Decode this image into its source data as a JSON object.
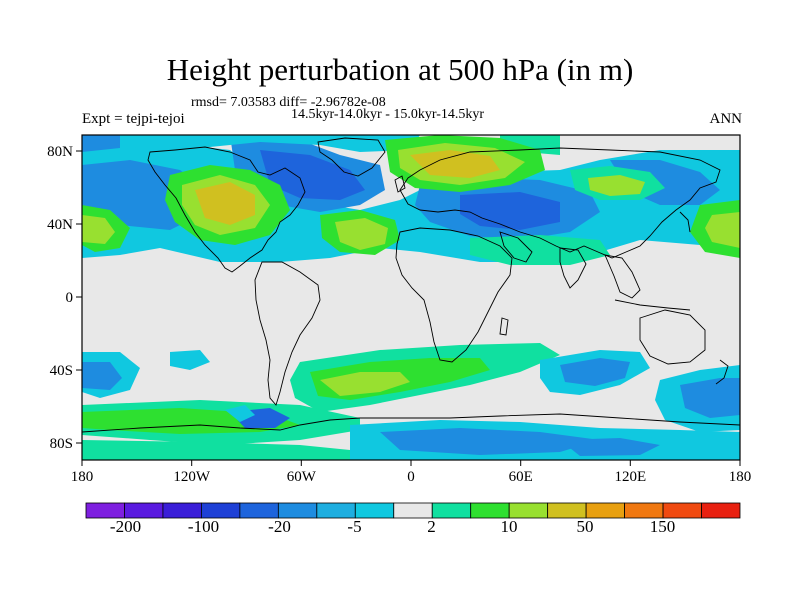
{
  "title": "Height perturbation at 500 hPa (in m)",
  "stats": "rmsd= 7.03583 diff= -2.96782e-08",
  "periods": "14.5kyr-14.0kyr - 15.0kyr-14.5kyr",
  "experiment": "Expt = tejpi-tejoi",
  "season": "ANN",
  "axes": {
    "lon_ticks": [
      "180",
      "120W",
      "60W",
      "0",
      "60E",
      "120E",
      "180"
    ],
    "lat_ticks": [
      "80N",
      "40N",
      "0",
      "40S",
      "80S"
    ]
  },
  "colorbar": {
    "labels": [
      "-200",
      "-100",
      "-20",
      "-5",
      "2",
      "10",
      "50",
      "150"
    ],
    "colors": [
      "#7e1fe0",
      "#5a1ae0",
      "#3a1ed8",
      "#1e40d6",
      "#1e64dc",
      "#1e8ce0",
      "#1eaee0",
      "#10c8e0",
      "#e8e8e8",
      "#10e0a0",
      "#2ee030",
      "#98e030",
      "#d0c020",
      "#e8a010",
      "#f07810",
      "#f04a10",
      "#e82010"
    ]
  },
  "colors": {
    "background_field": "#e8e8e8",
    "coastline": "#000000"
  }
}
